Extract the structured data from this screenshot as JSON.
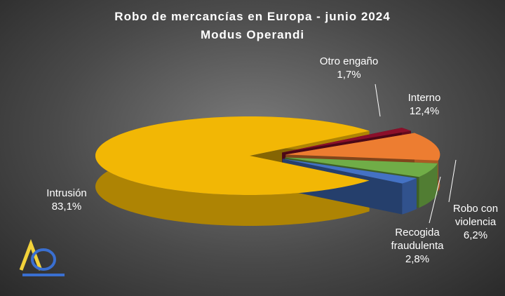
{
  "chart_data": {
    "type": "pie",
    "title": "Robo de mercancías en Europa - junio 2024",
    "subtitle": "Modus Operandi",
    "categories": [
      "Intrusión",
      "Otro engaño",
      "Interno",
      "Robo con violencia",
      "Recogida fraudulenta"
    ],
    "values": [
      83.1,
      1.7,
      12.4,
      6.2,
      2.8
    ],
    "value_labels": [
      "83,1%",
      "1,7%",
      "12,4%",
      "6,2%",
      "2,8%"
    ],
    "colors": [
      "#f2b705",
      "#8b0f2a",
      "#ed7d31",
      "#70ad47",
      "#4472c4"
    ]
  }
}
